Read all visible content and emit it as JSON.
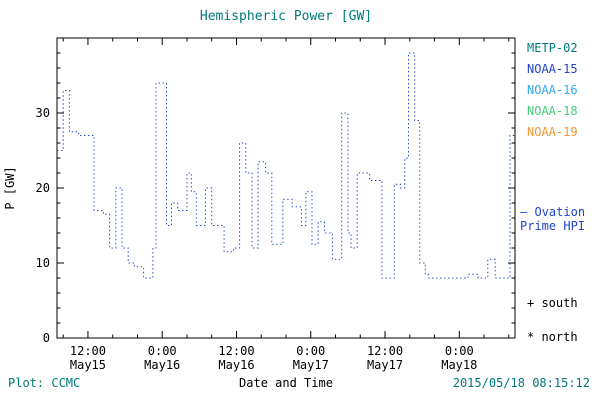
{
  "colors": {
    "accent": "#007a7a",
    "trace_blue": "#2244cc"
  },
  "legend": {
    "items": [
      {
        "label": "METP-02",
        "color": "#007a7a"
      },
      {
        "label": "NOAA-15",
        "color": "#2244cc"
      },
      {
        "label": "NOAA-16",
        "color": "#33aaee"
      },
      {
        "label": "NOAA-18",
        "color": "#44cc77"
      },
      {
        "label": "NOAA-19",
        "color": "#ee9933"
      }
    ]
  },
  "annotations": {
    "ovation": {
      "marker": "—",
      "line1": "Ovation",
      "line2": "Prime HPI",
      "color": "#2244cc"
    },
    "south": "+ south",
    "north": "* north"
  },
  "footer": {
    "plot_credit": "Plot: CCMC",
    "timestamp": "2015/05/18 08:15:12"
  },
  "chart_data": {
    "type": "line",
    "subtype": "step-post-dotted",
    "title": "Hemispheric Power [GW]",
    "xlabel": "Date and Time",
    "ylabel": "P [GW]",
    "ylim": [
      0,
      40
    ],
    "yticks": [
      0,
      10,
      20,
      30
    ],
    "grid": false,
    "legend_position": "right-outside",
    "x_hours_since_may15_00": [
      7,
      81
    ],
    "xticks": [
      {
        "hour": 12,
        "time": "12:00",
        "date": "May15"
      },
      {
        "hour": 24,
        "time": "0:00",
        "date": "May16"
      },
      {
        "hour": 36,
        "time": "12:00",
        "date": "May16"
      },
      {
        "hour": 48,
        "time": "0:00",
        "date": "May17"
      },
      {
        "hour": 60,
        "time": "12:00",
        "date": "May17"
      },
      {
        "hour": 72,
        "time": "0:00",
        "date": "May18"
      }
    ],
    "series": [
      {
        "name": "Ovation Prime HPI",
        "color": "#2244cc",
        "style": "dotted-step",
        "points": [
          [
            7,
            25
          ],
          [
            8,
            33
          ],
          [
            9,
            27.5
          ],
          [
            10.5,
            27
          ],
          [
            13,
            17
          ],
          [
            14.5,
            16.5
          ],
          [
            15.5,
            12
          ],
          [
            16.5,
            20
          ],
          [
            17.5,
            12
          ],
          [
            18.5,
            10
          ],
          [
            19.5,
            9.5
          ],
          [
            21,
            8
          ],
          [
            22.5,
            12
          ],
          [
            23,
            34
          ],
          [
            24.7,
            15
          ],
          [
            25.5,
            18
          ],
          [
            26.5,
            17
          ],
          [
            28,
            22
          ],
          [
            28.7,
            19.5
          ],
          [
            29.5,
            15
          ],
          [
            31,
            20
          ],
          [
            32,
            15
          ],
          [
            34,
            11.5
          ],
          [
            35.5,
            12
          ],
          [
            36.5,
            26
          ],
          [
            37.5,
            22
          ],
          [
            38.5,
            12
          ],
          [
            39.5,
            23.5
          ],
          [
            40.7,
            22
          ],
          [
            41.7,
            12.5
          ],
          [
            43.5,
            18.5
          ],
          [
            45,
            17.5
          ],
          [
            46.5,
            15
          ],
          [
            47.2,
            19.5
          ],
          [
            48.2,
            12.5
          ],
          [
            49.2,
            15.5
          ],
          [
            50.2,
            14
          ],
          [
            51.5,
            10.5
          ],
          [
            53,
            30
          ],
          [
            54,
            14
          ],
          [
            54.5,
            12
          ],
          [
            55.5,
            22
          ],
          [
            57.5,
            21
          ],
          [
            59.5,
            8
          ],
          [
            61.5,
            20.5
          ],
          [
            62.5,
            20
          ],
          [
            63.2,
            24
          ],
          [
            63.8,
            38
          ],
          [
            64.8,
            29
          ],
          [
            65.6,
            10
          ],
          [
            66.5,
            8.5
          ],
          [
            67,
            8
          ],
          [
            73.4,
            8.5
          ],
          [
            75,
            8
          ],
          [
            76.6,
            10.5
          ],
          [
            77.8,
            8
          ],
          [
            80.2,
            27
          ]
        ]
      }
    ]
  }
}
